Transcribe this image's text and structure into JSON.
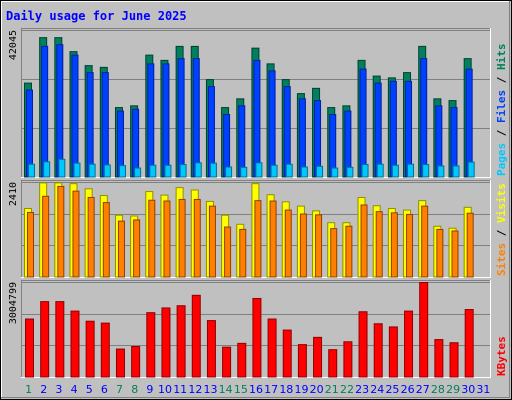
{
  "title": "Daily usage for June 2025",
  "colors": {
    "background": "#c0c0c0",
    "title": "#0000ff",
    "hits": "#00805c",
    "files": "#0040ff",
    "pages": "#00c8ff",
    "visits": "#ffff00",
    "sites": "#ff8000",
    "kbytes": "#ff0000",
    "weekend_label": "#00805c",
    "weekday_label": "#0000ff"
  },
  "chart_data": [
    {
      "type": "bar",
      "panel": "hits-files-pages",
      "ymax_label": "42045",
      "ylim": [
        0,
        42045
      ],
      "legend": [
        {
          "name": "Pages",
          "color": "#00c8ff"
        },
        {
          "name": "Files",
          "color": "#0040ff"
        },
        {
          "name": "Hits",
          "color": "#00805c"
        }
      ],
      "legend_separator": "/",
      "categories": [
        "1",
        "2",
        "3",
        "4",
        "5",
        "6",
        "7",
        "8",
        "9",
        "10",
        "11",
        "12",
        "13",
        "14",
        "15",
        "16",
        "17",
        "18",
        "19",
        "20",
        "21",
        "22",
        "23",
        "24",
        "25",
        "26",
        "27",
        "28",
        "29",
        "30",
        "31"
      ],
      "series": [
        {
          "name": "Hits",
          "values": [
            27000,
            40000,
            40000,
            36000,
            32000,
            31500,
            20000,
            20500,
            35000,
            33500,
            37500,
            37500,
            28000,
            20000,
            22500,
            37000,
            32500,
            28000,
            24000,
            25500,
            20000,
            20500,
            33500,
            29000,
            28500,
            30000,
            37500,
            22500,
            22000,
            34000,
            0
          ]
        },
        {
          "name": "Files",
          "values": [
            25000,
            37500,
            38000,
            35000,
            30000,
            30000,
            19000,
            19500,
            32500,
            32500,
            34000,
            34000,
            26000,
            18000,
            20500,
            33500,
            30500,
            26000,
            22500,
            22000,
            18000,
            19000,
            31000,
            27000,
            27500,
            27500,
            34000,
            20500,
            20000,
            31000,
            0
          ]
        },
        {
          "name": "Pages",
          "values": [
            3800,
            4500,
            5200,
            4100,
            3800,
            3600,
            3400,
            2700,
            3500,
            3500,
            3700,
            4200,
            4100,
            3000,
            2900,
            4200,
            3500,
            3800,
            3000,
            3200,
            2700,
            2900,
            3700,
            3800,
            3500,
            3800,
            3700,
            3300,
            3300,
            4400,
            0
          ]
        }
      ]
    },
    {
      "type": "bar",
      "panel": "visits-sites",
      "ymax_label": "2410",
      "ylim": [
        0,
        2410
      ],
      "legend": [
        {
          "name": "Sites",
          "color": "#ff8000"
        },
        {
          "name": "Visits",
          "color": "#ffff00"
        }
      ],
      "legend_separator": "/",
      "categories": [
        "1",
        "2",
        "3",
        "4",
        "5",
        "6",
        "7",
        "8",
        "9",
        "10",
        "11",
        "12",
        "13",
        "14",
        "15",
        "16",
        "17",
        "18",
        "19",
        "20",
        "21",
        "22",
        "23",
        "24",
        "25",
        "26",
        "27",
        "28",
        "29",
        "30",
        "31"
      ],
      "series": [
        {
          "name": "Visits",
          "values": [
            1750,
            2400,
            2400,
            2380,
            2250,
            2080,
            1580,
            1560,
            2180,
            2090,
            2280,
            2220,
            1930,
            1580,
            1350,
            2380,
            2100,
            1920,
            1810,
            1690,
            1390,
            1390,
            2030,
            1820,
            1750,
            1710,
            1950,
            1300,
            1250,
            1780,
            0
          ]
        },
        {
          "name": "Sites",
          "values": [
            1650,
            2060,
            2310,
            2190,
            2030,
            1900,
            1430,
            1460,
            1960,
            1940,
            1980,
            1980,
            1810,
            1280,
            1220,
            1950,
            1940,
            1710,
            1610,
            1590,
            1240,
            1300,
            1840,
            1670,
            1640,
            1600,
            1810,
            1220,
            1180,
            1630,
            0
          ]
        }
      ]
    },
    {
      "type": "bar",
      "panel": "kbytes",
      "ymax_label": "3004799",
      "ylim": [
        0,
        3004799
      ],
      "legend": [
        {
          "name": "KBytes",
          "color": "#ff0000"
        }
      ],
      "legend_separator": "",
      "categories": [
        "1",
        "2",
        "3",
        "4",
        "5",
        "6",
        "7",
        "8",
        "9",
        "10",
        "11",
        "12",
        "13",
        "14",
        "15",
        "16",
        "17",
        "18",
        "19",
        "20",
        "21",
        "22",
        "23",
        "24",
        "25",
        "26",
        "27",
        "28",
        "29",
        "30",
        "31"
      ],
      "series": [
        {
          "name": "KBytes",
          "values": [
            1850000,
            2400000,
            2400000,
            2100000,
            1780000,
            1720000,
            900000,
            980000,
            2050000,
            2200000,
            2270000,
            2600000,
            1800000,
            960000,
            1080000,
            2500000,
            1850000,
            1500000,
            1040000,
            1270000,
            880000,
            1130000,
            2080000,
            1700000,
            1600000,
            2100000,
            3004799,
            1200000,
            1100000,
            2150000,
            0
          ]
        }
      ]
    }
  ],
  "x_labels": [
    {
      "text": "1",
      "weekend": true
    },
    {
      "text": "2",
      "weekend": false
    },
    {
      "text": "3",
      "weekend": false
    },
    {
      "text": "4",
      "weekend": false
    },
    {
      "text": "5",
      "weekend": false
    },
    {
      "text": "6",
      "weekend": false
    },
    {
      "text": "7",
      "weekend": true
    },
    {
      "text": "8",
      "weekend": true
    },
    {
      "text": "9",
      "weekend": false
    },
    {
      "text": "10",
      "weekend": false
    },
    {
      "text": "11",
      "weekend": false
    },
    {
      "text": "12",
      "weekend": false
    },
    {
      "text": "13",
      "weekend": false
    },
    {
      "text": "14",
      "weekend": true
    },
    {
      "text": "15",
      "weekend": true
    },
    {
      "text": "16",
      "weekend": false
    },
    {
      "text": "17",
      "weekend": false
    },
    {
      "text": "18",
      "weekend": false
    },
    {
      "text": "19",
      "weekend": false
    },
    {
      "text": "20",
      "weekend": false
    },
    {
      "text": "21",
      "weekend": true
    },
    {
      "text": "22",
      "weekend": true
    },
    {
      "text": "23",
      "weekend": false
    },
    {
      "text": "24",
      "weekend": false
    },
    {
      "text": "25",
      "weekend": false
    },
    {
      "text": "26",
      "weekend": false
    },
    {
      "text": "27",
      "weekend": false
    },
    {
      "text": "28",
      "weekend": true
    },
    {
      "text": "29",
      "weekend": true
    },
    {
      "text": "30",
      "weekend": false
    },
    {
      "text": "31",
      "weekend": false
    }
  ]
}
